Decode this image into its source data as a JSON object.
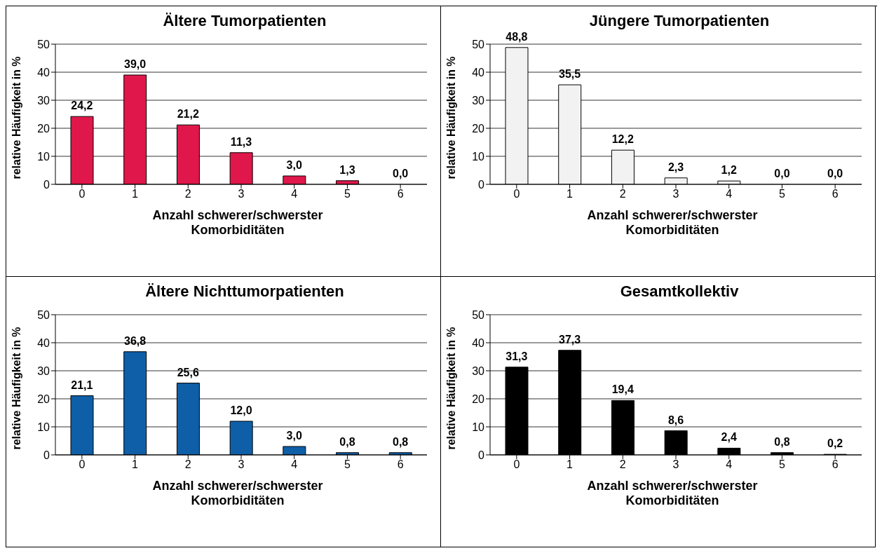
{
  "chart_data": [
    {
      "type": "bar",
      "title": "Ältere Tumorpatienten",
      "xlabel": "Anzahl schwerer/schwerster Komorbiditäten",
      "ylabel": "relative Häufigkeit in %",
      "categories": [
        "0",
        "1",
        "2",
        "3",
        "4",
        "5",
        "6"
      ],
      "values": [
        24.2,
        39.0,
        21.2,
        11.3,
        3.0,
        1.3,
        0.0
      ],
      "value_labels": [
        "24,2",
        "39,0",
        "21,2",
        "11,3",
        "3,0",
        "1,3",
        "0,0"
      ],
      "color": "#e0174a",
      "ylim": [
        0,
        50
      ],
      "yticks": [
        0,
        10,
        20,
        30,
        40,
        50
      ],
      "grid": "y",
      "legend": false
    },
    {
      "type": "bar",
      "title": "Jüngere Tumorpatienten",
      "xlabel": "Anzahl schwerer/schwerster Komorbiditäten",
      "ylabel": "relative Häufigkeit in %",
      "categories": [
        "0",
        "1",
        "2",
        "3",
        "4",
        "5",
        "6"
      ],
      "values": [
        48.8,
        35.5,
        12.2,
        2.3,
        1.2,
        0.0,
        0.0
      ],
      "value_labels": [
        "48,8",
        "35,5",
        "12,2",
        "2,3",
        "1,2",
        "0,0",
        "0,0"
      ],
      "color": "#f2f2f2",
      "ylim": [
        0,
        50
      ],
      "yticks": [
        0,
        10,
        20,
        30,
        40,
        50
      ],
      "grid": "y",
      "legend": false
    },
    {
      "type": "bar",
      "title": "Ältere Nichttumorpatienten",
      "xlabel": "Anzahl schwerer/schwerster Komorbiditäten",
      "ylabel": "relative Häufigkeit in %",
      "categories": [
        "0",
        "1",
        "2",
        "3",
        "4",
        "5",
        "6"
      ],
      "values": [
        21.1,
        36.8,
        25.6,
        12.0,
        3.0,
        0.8,
        0.8
      ],
      "value_labels": [
        "21,1",
        "36,8",
        "25,6",
        "12,0",
        "3,0",
        "0,8",
        "0,8"
      ],
      "color": "#0f5fa8",
      "ylim": [
        0,
        50
      ],
      "yticks": [
        0,
        10,
        20,
        30,
        40,
        50
      ],
      "grid": "y",
      "legend": false
    },
    {
      "type": "bar",
      "title": "Gesamtkollektiv",
      "xlabel": "Anzahl schwerer/schwerster Komorbiditäten",
      "ylabel": "relative Häufigkeit in %",
      "categories": [
        "0",
        "1",
        "2",
        "3",
        "4",
        "5",
        "6"
      ],
      "values": [
        31.3,
        37.3,
        19.4,
        8.6,
        2.4,
        0.8,
        0.2
      ],
      "value_labels": [
        "31,3",
        "37,3",
        "19,4",
        "8,6",
        "2,4",
        "0,8",
        "0,2"
      ],
      "color": "#000000",
      "ylim": [
        0,
        50
      ],
      "yticks": [
        0,
        10,
        20,
        30,
        40,
        50
      ],
      "grid": "y",
      "legend": false
    }
  ]
}
